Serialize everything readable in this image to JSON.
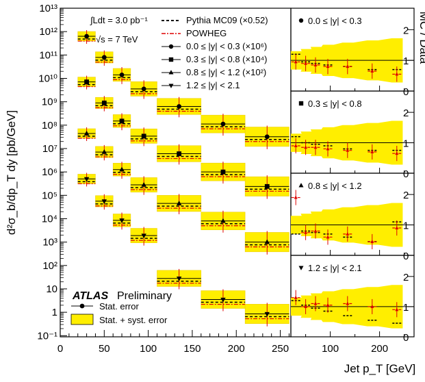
{
  "chart_data": [
    {
      "type": "scatter",
      "panel": "main",
      "xlabel": "Jet p_T [GeV]",
      "ylabel": "d²σ_b/dp_T dy [pb/GeV]",
      "x_ticks": [
        0,
        50,
        100,
        150,
        200,
        250
      ],
      "y_log": true,
      "y_ticks": [
        "10⁻¹",
        "1",
        "10",
        "10²",
        "10³",
        "10⁴",
        "10⁵",
        "10⁶",
        "10⁷",
        "10⁸",
        "10⁹",
        "10¹⁰",
        "10¹¹",
        "10¹²",
        "10¹³"
      ],
      "y_tick_exponents": [
        -1,
        0,
        1,
        2,
        3,
        4,
        5,
        6,
        7,
        8,
        9,
        10,
        11,
        12,
        13
      ],
      "xlim": [
        0,
        262
      ],
      "ylim_exponent": [
        -1.05,
        13
      ],
      "grid": false,
      "lumi_text": "∫Ldt = 3.0 pb⁻¹",
      "energy_text": "√s = 7 TeV",
      "atlas_label": "ATLAS",
      "atlas_sub": "Preliminary",
      "legend": [
        {
          "label": "Pythia MC09 (×0.52)",
          "style": "dashed",
          "color": "#000000"
        },
        {
          "label": "POWHEG",
          "style": "dashdot",
          "color": "#dd0000"
        },
        {
          "label": "0.0 ≤ |y| < 0.3 (×10⁶)",
          "marker": "circle"
        },
        {
          "label": "0.3 ≤ |y| < 0.8 (×10⁴)",
          "marker": "square"
        },
        {
          "label": "0.8 ≤ |y| < 1.2 (×10²)",
          "marker": "triangle-up"
        },
        {
          "label": "1.2 ≤ |y| < 2.1",
          "marker": "triangle-down"
        }
      ],
      "legend_bottom": [
        {
          "label": "Stat. error",
          "type": "marker-line"
        },
        {
          "label": "Stat. + syst. error",
          "type": "band",
          "color": "#ffee00"
        }
      ],
      "bins": [
        [
          20,
          40
        ],
        [
          40,
          60
        ],
        [
          60,
          80
        ],
        [
          80,
          110
        ],
        [
          110,
          160
        ],
        [
          160,
          210
        ],
        [
          210,
          260
        ]
      ],
      "series": [
        {
          "name": "0.0 ≤ |y| < 0.3 (×10⁶)",
          "marker": "circle",
          "values": [
            630000000000.0,
            79000000000.0,
            14100000000.0,
            3550000000.0,
            630000000.0,
            112000000.0,
            32000000.0
          ]
        },
        {
          "name": "0.3 ≤ |y| < 0.8 (×10⁴)",
          "marker": "square",
          "values": [
            7100000000.0,
            890000000.0,
            150000000.0,
            34000000.0,
            6000000.0,
            1000000.0,
            240000.0
          ]
        },
        {
          "name": "0.8 ≤ |y| < 1.2 (×10²)",
          "marker": "triangle-up",
          "values": [
            44000000.0,
            7100000.0,
            1260000.0,
            280000.0,
            45000.0,
            8000.0,
            1000.0
          ]
        },
        {
          "name": "1.2 ≤ |y| < 2.1",
          "marker": "triangle-down",
          "values": [
            500000.0,
            56000.0,
            8500.0,
            1900.0,
            28,
            3.5,
            0.85
          ]
        }
      ]
    },
    {
      "type": "scatter",
      "panel": "ratio",
      "ylabel": "MC / Data",
      "xlabel": "Jet p_T [GeV]",
      "x_ticks": [
        100,
        200
      ],
      "y_ticks": [
        0,
        1,
        2
      ],
      "ylim": [
        0,
        2.7
      ],
      "xlim": [
        20,
        270
      ],
      "grid": false,
      "panels": [
        {
          "label": "0.0 ≤ |y| < 0.3",
          "marker": "circle",
          "x": [
            30,
            50,
            70,
            95,
            135,
            185,
            235
          ],
          "pythia": [
            1.2,
            0.95,
            0.9,
            0.85,
            0.8,
            0.7,
            0.7
          ],
          "powheg": [
            0.95,
            0.9,
            0.85,
            0.8,
            0.8,
            0.65,
            0.55
          ]
        },
        {
          "label": "0.3 ≤ |y| < 0.8",
          "marker": "square",
          "x": [
            30,
            50,
            70,
            95,
            135,
            185,
            235
          ],
          "pythia": [
            1.2,
            1.0,
            0.95,
            0.9,
            0.8,
            0.75,
            0.75
          ],
          "powheg": [
            0.9,
            0.85,
            0.85,
            0.8,
            0.75,
            0.7,
            0.65
          ]
        },
        {
          "label": "0.8 ≤ |y| < 1.2",
          "marker": "triangle-up",
          "x": [
            30,
            50,
            70,
            95,
            135,
            185,
            235
          ],
          "pythia": [
            0.7,
            0.8,
            0.75,
            0.7,
            0.6,
            0.45,
            1.1
          ],
          "powheg": [
            1.9,
            0.75,
            0.8,
            0.6,
            0.7,
            0.45,
            0.9
          ]
        },
        {
          "label": "1.2 ≤ |y| < 2.1",
          "marker": "triangle-down",
          "x": [
            30,
            50,
            70,
            95,
            135,
            185,
            235
          ],
          "pythia": [
            1.2,
            1.05,
            0.95,
            0.85,
            0.7,
            0.55,
            0.45
          ],
          "powheg": [
            1.3,
            1.0,
            1.1,
            1.05,
            1.1,
            1.0,
            0.9
          ]
        }
      ]
    }
  ],
  "colors": {
    "band": "#ffee00",
    "band_stroke": "#e8c800",
    "powheg": "#dd0000",
    "pythia": "#000000"
  }
}
